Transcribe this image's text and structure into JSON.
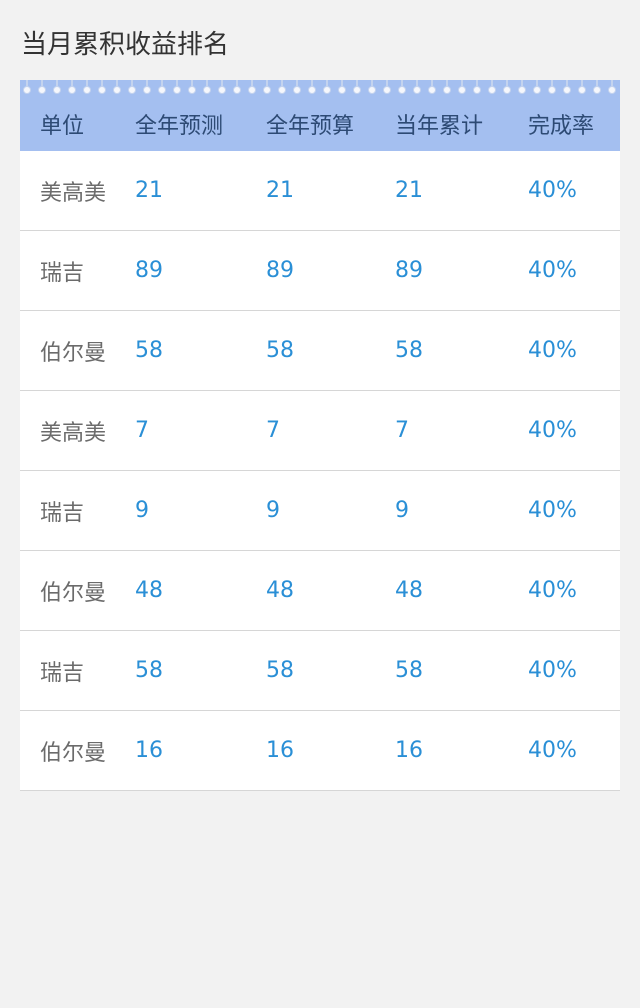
{
  "page": {
    "title": "当月累积收益排名"
  },
  "table": {
    "headers": [
      "单位",
      "全年预测",
      "全年预算",
      "当年累计",
      "完成率"
    ],
    "rows": [
      {
        "unit": "美高美",
        "forecast": "21",
        "budget": "21",
        "cumulative": "21",
        "rate": "40%"
      },
      {
        "unit": "瑞吉",
        "forecast": "89",
        "budget": "89",
        "cumulative": "89",
        "rate": "40%"
      },
      {
        "unit": "伯尔曼",
        "forecast": "58",
        "budget": "58",
        "cumulative": "58",
        "rate": "40%"
      },
      {
        "unit": "美高美",
        "forecast": "7",
        "budget": "7",
        "cumulative": "7",
        "rate": "40%"
      },
      {
        "unit": "瑞吉",
        "forecast": "9",
        "budget": "9",
        "cumulative": "9",
        "rate": "40%"
      },
      {
        "unit": "伯尔曼",
        "forecast": "48",
        "budget": "48",
        "cumulative": "48",
        "rate": "40%"
      },
      {
        "unit": "瑞吉",
        "forecast": "58",
        "budget": "58",
        "cumulative": "58",
        "rate": "40%"
      },
      {
        "unit": "伯尔曼",
        "forecast": "16",
        "budget": "16",
        "cumulative": "16",
        "rate": "40%"
      }
    ]
  },
  "colors": {
    "header_background": "#a4bff0",
    "header_text": "#2d4a74",
    "value_text": "#2a8fd6",
    "unit_text": "#6b6b6b",
    "page_background": "#f2f2f2"
  }
}
